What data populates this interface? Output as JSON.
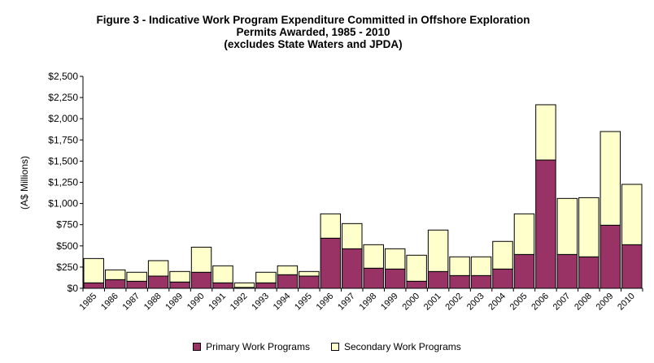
{
  "chart_data": {
    "type": "bar",
    "stacked": true,
    "title": [
      "Figure 3 - Indicative Work Program Expenditure Committed in Offshore Exploration",
      "Permits Awarded, 1985 - 2010",
      "(excludes State Waters and JPDA)"
    ],
    "xlabel": "",
    "ylabel": "(A$ Millions)",
    "ylim": [
      0,
      2500
    ],
    "yticks": [
      "$0",
      "$250",
      "$500",
      "$750",
      "$1,000",
      "$1,250",
      "$1,500",
      "$1,750",
      "$2,000",
      "$2,250",
      "$2,500"
    ],
    "ytick_values": [
      0,
      250,
      500,
      750,
      1000,
      1250,
      1500,
      1750,
      2000,
      2250,
      2500
    ],
    "grid": false,
    "legend_placement": "bottom",
    "categories": [
      "1985",
      "1986",
      "1987",
      "1988",
      "1989",
      "1990",
      "1991",
      "1992",
      "1993",
      "1994",
      "1995",
      "1996",
      "1997",
      "1998",
      "1999",
      "2000",
      "2001",
      "2002",
      "2003",
      "2004",
      "2005",
      "2006",
      "2007",
      "2008",
      "2009",
      "2010"
    ],
    "series": [
      {
        "name": "Primary Work Programs",
        "color": "#993366",
        "values": [
          64,
          102,
          83,
          144,
          74,
          189,
          64,
          10,
          64,
          160,
          144,
          591,
          466,
          237,
          227,
          83,
          198,
          150,
          150,
          227,
          399,
          1513,
          399,
          371,
          744,
          514
        ]
      },
      {
        "name": "Secondary Work Programs",
        "color": "#FFFFCC",
        "values": [
          287,
          115,
          106,
          182,
          124,
          296,
          201,
          54,
          125,
          105,
          54,
          287,
          297,
          277,
          239,
          307,
          489,
          221,
          221,
          326,
          479,
          652,
          661,
          698,
          1105,
          712
        ]
      }
    ]
  }
}
